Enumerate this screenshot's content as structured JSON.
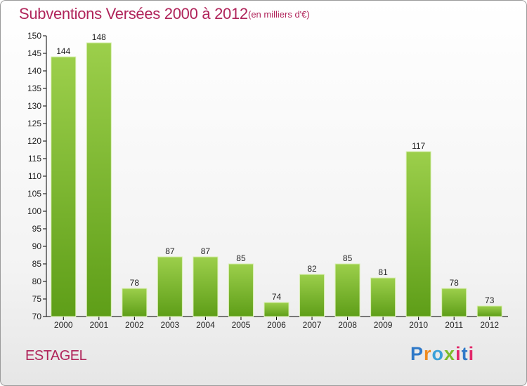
{
  "header": {
    "title": "Subventions Versées 2000 à 2012",
    "subtitle": "(en milliers d'€)"
  },
  "footer": {
    "commune": "ESTAGEL",
    "logo": "Proxiti"
  },
  "colors": {
    "title": "#b0245a",
    "bar_top": "#9ccf4b",
    "bar_bottom": "#5e9e18",
    "grid": "#000000"
  },
  "chart_data": {
    "type": "bar",
    "title": "Subventions Versées 2000 à 2012",
    "subtitle": "(en milliers d'€)",
    "categories": [
      "2000",
      "2001",
      "2002",
      "2003",
      "2004",
      "2005",
      "2006",
      "2007",
      "2008",
      "2009",
      "2010",
      "2011",
      "2012"
    ],
    "values": [
      144,
      148,
      78,
      87,
      87,
      85,
      74,
      82,
      85,
      81,
      117,
      78,
      73
    ],
    "ylim": [
      70,
      150
    ],
    "yticks": [
      70,
      75,
      80,
      85,
      90,
      95,
      100,
      105,
      110,
      115,
      120,
      125,
      130,
      135,
      140,
      145,
      150
    ],
    "grid": false,
    "data_labels": true
  }
}
